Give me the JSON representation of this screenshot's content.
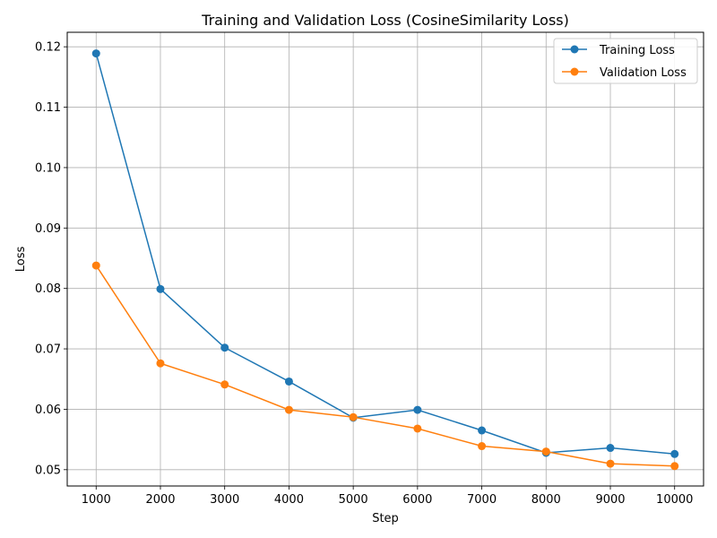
{
  "chart_data": {
    "type": "line",
    "title": "Training and Validation Loss (CosineSimilarity Loss)",
    "xlabel": "Step",
    "ylabel": "Loss",
    "x": [
      1000,
      2000,
      3000,
      4000,
      5000,
      6000,
      7000,
      8000,
      9000,
      10000
    ],
    "x_ticks": [
      "1000",
      "2000",
      "3000",
      "4000",
      "5000",
      "6000",
      "7000",
      "8000",
      "9000",
      "10000"
    ],
    "y_ticks": [
      "0.05",
      "0.06",
      "0.07",
      "0.08",
      "0.09",
      "0.10",
      "0.11",
      "0.12"
    ],
    "y_tick_values": [
      0.05,
      0.06,
      0.07,
      0.08,
      0.09,
      0.1,
      0.11,
      0.12
    ],
    "xlim": [
      550,
      10450
    ],
    "ylim": [
      0.0473,
      0.1224
    ],
    "grid": true,
    "legend_position": "top-right",
    "series": [
      {
        "name": "Training Loss",
        "color": "#1f77b4",
        "values": [
          0.1189,
          0.0799,
          0.0702,
          0.0646,
          0.0586,
          0.0599,
          0.0565,
          0.0528,
          0.0536,
          0.0526
        ]
      },
      {
        "name": "Validation Loss",
        "color": "#ff7f0e",
        "values": [
          0.0838,
          0.0676,
          0.0641,
          0.0599,
          0.0587,
          0.0568,
          0.0539,
          0.053,
          0.051,
          0.0506
        ]
      }
    ]
  }
}
